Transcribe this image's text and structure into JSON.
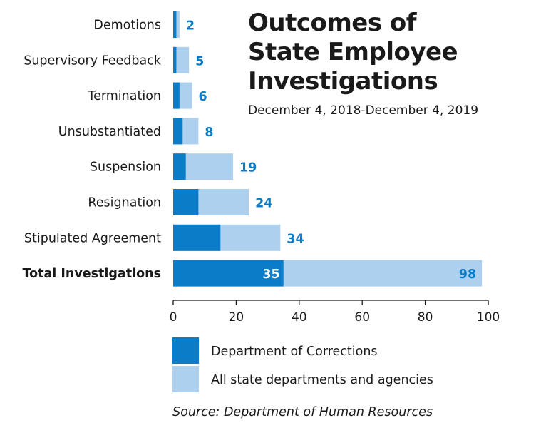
{
  "chart_data": {
    "type": "bar",
    "orientation": "horizontal",
    "stacking": "overlay",
    "title": "Outcomes of State Employee Investigations",
    "title_lines": [
      "Outcomes of",
      "State Employee",
      "Investigations"
    ],
    "subtitle": "December 4, 2018-December 4, 2019",
    "source": "Source: Department of Human Resources",
    "categories": [
      "Demotions",
      "Supervisory Feedback",
      "Termination",
      "Unsubstantiated",
      "Suspension",
      "Resignation",
      "Stipulated Agreement",
      "Total Investigations"
    ],
    "highlighted_category": "Total Investigations",
    "series": [
      {
        "name": "Department of Corrections",
        "color": "#0a7cc8",
        "values": [
          1,
          1,
          2,
          3,
          4,
          8,
          15,
          35
        ],
        "labels": [
          "",
          "",
          "",
          "",
          "",
          "",
          "",
          "35"
        ]
      },
      {
        "name": "All state departments and agencies",
        "color": "#acd0ee",
        "values": [
          2,
          5,
          6,
          8,
          19,
          24,
          34,
          98
        ],
        "labels": [
          "2",
          "5",
          "6",
          "8",
          "19",
          "24",
          "34",
          "98"
        ]
      }
    ],
    "value_label_color": "#0a7cc8",
    "xlim": [
      0,
      100
    ],
    "xticks": [
      "0",
      "20",
      "40",
      "60",
      "80",
      "100"
    ],
    "grid": false,
    "legend_position": "bottom"
  }
}
